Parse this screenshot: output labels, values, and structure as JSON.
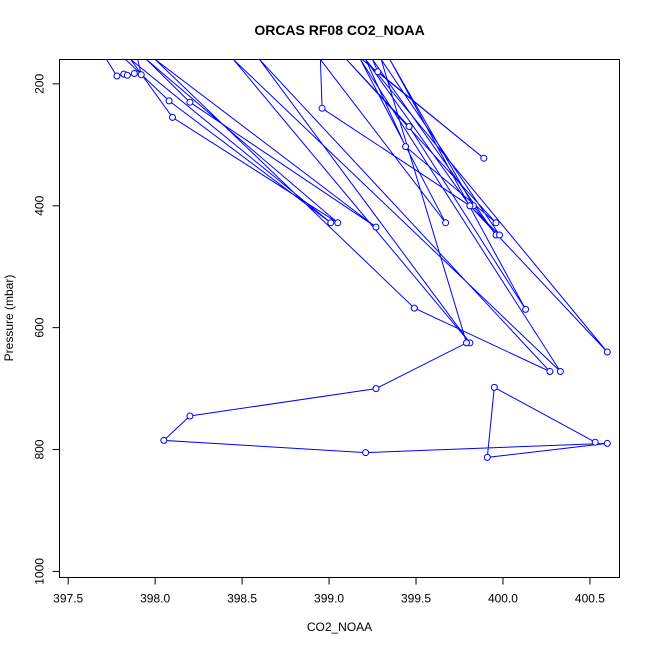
{
  "chart_data": {
    "type": "line",
    "title": "ORCAS RF08 CO2_NOAA",
    "xlabel": "CO2_NOAA",
    "ylabel": "Pressure (mbar)",
    "xlim": [
      397.45,
      400.67
    ],
    "ylim": [
      160,
      1010
    ],
    "y_reversed": true,
    "x_ticks": [
      397.5,
      398.0,
      398.5,
      399.0,
      399.5,
      400.0,
      400.5
    ],
    "x_tick_labels": [
      "397.5",
      "398.0",
      "398.5",
      "399.0",
      "399.5",
      "400.0",
      "400.5"
    ],
    "y_ticks": [
      200,
      400,
      600,
      800,
      1000
    ],
    "y_tick_labels": [
      "200",
      "400",
      "600",
      "800",
      "1000"
    ],
    "grid": false,
    "series": [
      {
        "color": "#0000ff",
        "points": [
          [
            397.72,
            160
          ],
          [
            397.78,
            187
          ],
          [
            397.82,
            184
          ],
          [
            397.84,
            186
          ],
          [
            397.88,
            183
          ],
          [
            397.92,
            185
          ],
          [
            397.9,
            160
          ],
          [
            397.83,
            160
          ],
          [
            398.08,
            228
          ],
          [
            399.01,
            428
          ],
          [
            397.86,
            160
          ],
          [
            398.1,
            255
          ],
          [
            399.05,
            428
          ],
          [
            397.95,
            160
          ],
          [
            398.2,
            230
          ],
          [
            399.27,
            435
          ],
          [
            398.0,
            160
          ],
          [
            399.49,
            568
          ],
          [
            400.27,
            672
          ],
          [
            398.6,
            160
          ],
          [
            399.81,
            625
          ],
          [
            398.45,
            160
          ],
          [
            400.33,
            672
          ],
          [
            399.18,
            160
          ],
          [
            399.67,
            428
          ],
          [
            398.95,
            160
          ],
          [
            398.96,
            240
          ],
          [
            399.81,
            400
          ],
          [
            400.6,
            640
          ],
          [
            399.21,
            160
          ],
          [
            399.44,
            303
          ],
          [
            399.96,
            428
          ],
          [
            399.1,
            160
          ],
          [
            399.46,
            270
          ],
          [
            400.13,
            570
          ],
          [
            399.35,
            160
          ],
          [
            399.83,
            400
          ],
          [
            399.96,
            448
          ],
          [
            399.25,
            160
          ],
          [
            399.28,
            180
          ],
          [
            399.89,
            322
          ],
          [
            399.19,
            160
          ],
          [
            399.05,
            160
          ],
          [
            399.21,
            160
          ],
          [
            399.81,
            400
          ],
          [
            399.98,
            448
          ],
          [
            399.3,
            160
          ],
          [
            399.79,
            625
          ],
          [
            399.27,
            700
          ],
          [
            398.2,
            745
          ],
          [
            398.05,
            785
          ],
          [
            399.21,
            805
          ],
          [
            400.6,
            790
          ],
          [
            399.91,
            813
          ],
          [
            399.95,
            698
          ],
          [
            400.53,
            788
          ]
        ]
      }
    ]
  }
}
